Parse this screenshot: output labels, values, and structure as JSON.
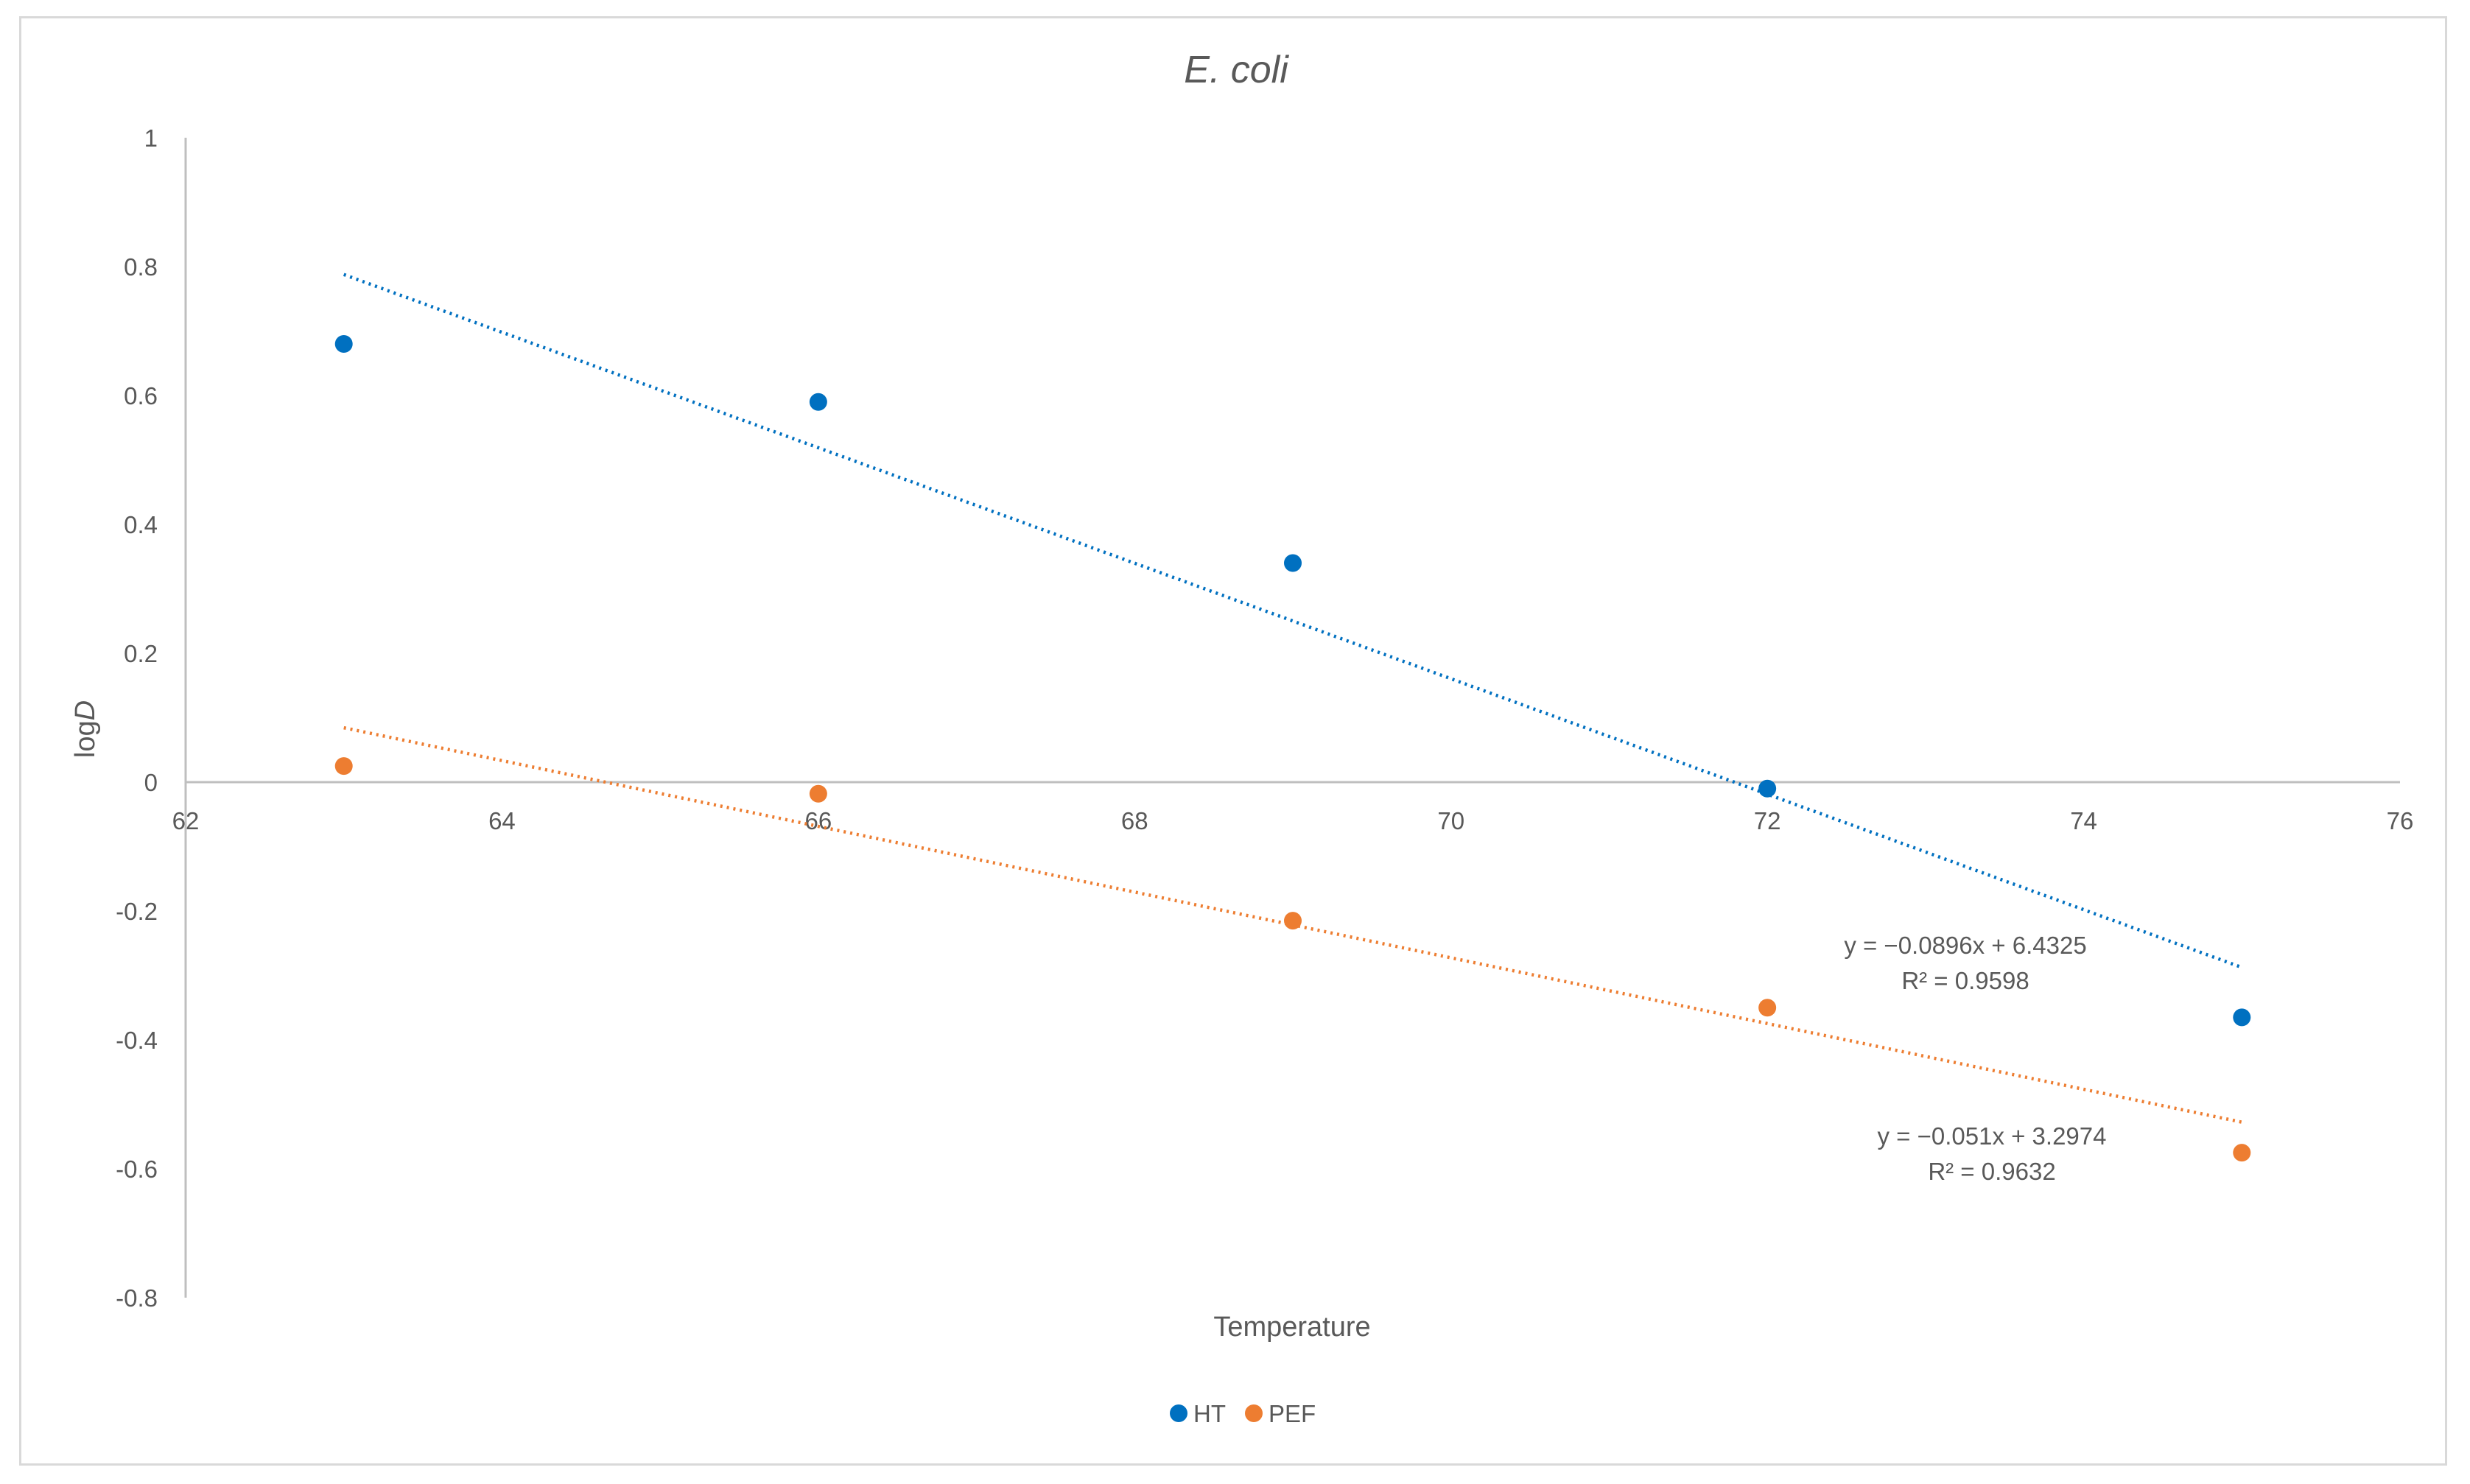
{
  "chart_data": {
    "type": "scatter",
    "title": "E. coli",
    "xlabel": "Temperature",
    "ylabel_prefix": "log",
    "ylabel_italic": "D",
    "xlim": [
      62,
      76
    ],
    "ylim": [
      -0.8,
      1
    ],
    "x_ticks": [
      62,
      64,
      66,
      68,
      70,
      72,
      74,
      76
    ],
    "y_ticks": [
      1,
      0.8,
      0.6,
      0.4,
      0.2,
      0,
      -0.2,
      -0.4,
      -0.6,
      -0.8
    ],
    "x_tick_labels": [
      "62",
      "64",
      "66",
      "68",
      "70",
      "72",
      "74",
      "76"
    ],
    "y_tick_labels": [
      "1",
      "0.8",
      "0.6",
      "0.4",
      "0.2",
      "0",
      "-0.2",
      "-0.4",
      "-0.6",
      "-0.8"
    ],
    "grid": false,
    "legend_position": "bottom",
    "series": [
      {
        "name": "HT",
        "color": "#0070C0",
        "x": [
          63,
          66,
          69,
          72,
          75
        ],
        "y": [
          0.68,
          0.59,
          0.34,
          -0.01,
          -0.365
        ],
        "trendline": {
          "type": "linear",
          "slope": -0.0896,
          "intercept": 6.4325,
          "x_range": [
            63,
            75
          ],
          "equation": "y = −0.0896x + 6.4325",
          "r2": "R² = 0.9598"
        }
      },
      {
        "name": "PEF",
        "color": "#ED7D31",
        "x": [
          63,
          66,
          69,
          72,
          75
        ],
        "y": [
          0.025,
          -0.018,
          -0.215,
          -0.35,
          -0.575
        ],
        "trendline": {
          "type": "linear",
          "slope": -0.051,
          "intercept": 3.2974,
          "x_range": [
            63,
            75
          ],
          "equation": "y = −0.051x + 3.2974",
          "r2": "R² = 0.9632"
        }
      }
    ]
  }
}
